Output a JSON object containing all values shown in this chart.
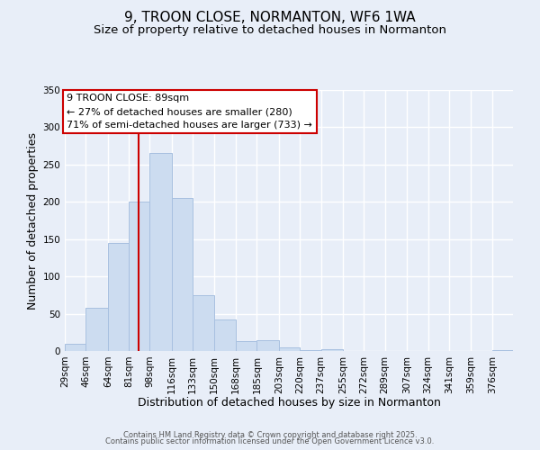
{
  "title": "9, TROON CLOSE, NORMANTON, WF6 1WA",
  "subtitle": "Size of property relative to detached houses in Normanton",
  "xlabel": "Distribution of detached houses by size in Normanton",
  "ylabel": "Number of detached properties",
  "bin_labels": [
    "29sqm",
    "46sqm",
    "64sqm",
    "81sqm",
    "98sqm",
    "116sqm",
    "133sqm",
    "150sqm",
    "168sqm",
    "185sqm",
    "203sqm",
    "220sqm",
    "237sqm",
    "255sqm",
    "272sqm",
    "289sqm",
    "307sqm",
    "324sqm",
    "341sqm",
    "359sqm",
    "376sqm"
  ],
  "bin_edges": [
    29,
    46,
    64,
    81,
    98,
    116,
    133,
    150,
    168,
    185,
    203,
    220,
    237,
    255,
    272,
    289,
    307,
    324,
    341,
    359,
    376,
    393
  ],
  "bar_heights": [
    10,
    58,
    145,
    200,
    265,
    205,
    75,
    42,
    13,
    14,
    5,
    1,
    2,
    0,
    0,
    0,
    0,
    0,
    0,
    0,
    1
  ],
  "bar_color": "#ccdcf0",
  "bar_edgecolor": "#a8c0e0",
  "vline_x": 89,
  "vline_color": "#cc0000",
  "ylim": [
    0,
    350
  ],
  "yticks": [
    0,
    50,
    100,
    150,
    200,
    250,
    300,
    350
  ],
  "annotation_title": "9 TROON CLOSE: 89sqm",
  "annotation_line1": "← 27% of detached houses are smaller (280)",
  "annotation_line2": "71% of semi-detached houses are larger (733) →",
  "annotation_box_color": "#ffffff",
  "annotation_box_edgecolor": "#cc0000",
  "footer1": "Contains HM Land Registry data © Crown copyright and database right 2025.",
  "footer2": "Contains public sector information licensed under the Open Government Licence v3.0.",
  "background_color": "#e8eef8",
  "grid_color": "#ffffff",
  "title_fontsize": 11,
  "subtitle_fontsize": 9.5,
  "axis_label_fontsize": 9,
  "tick_fontsize": 7.5,
  "annotation_fontsize": 8,
  "footer_fontsize": 6
}
